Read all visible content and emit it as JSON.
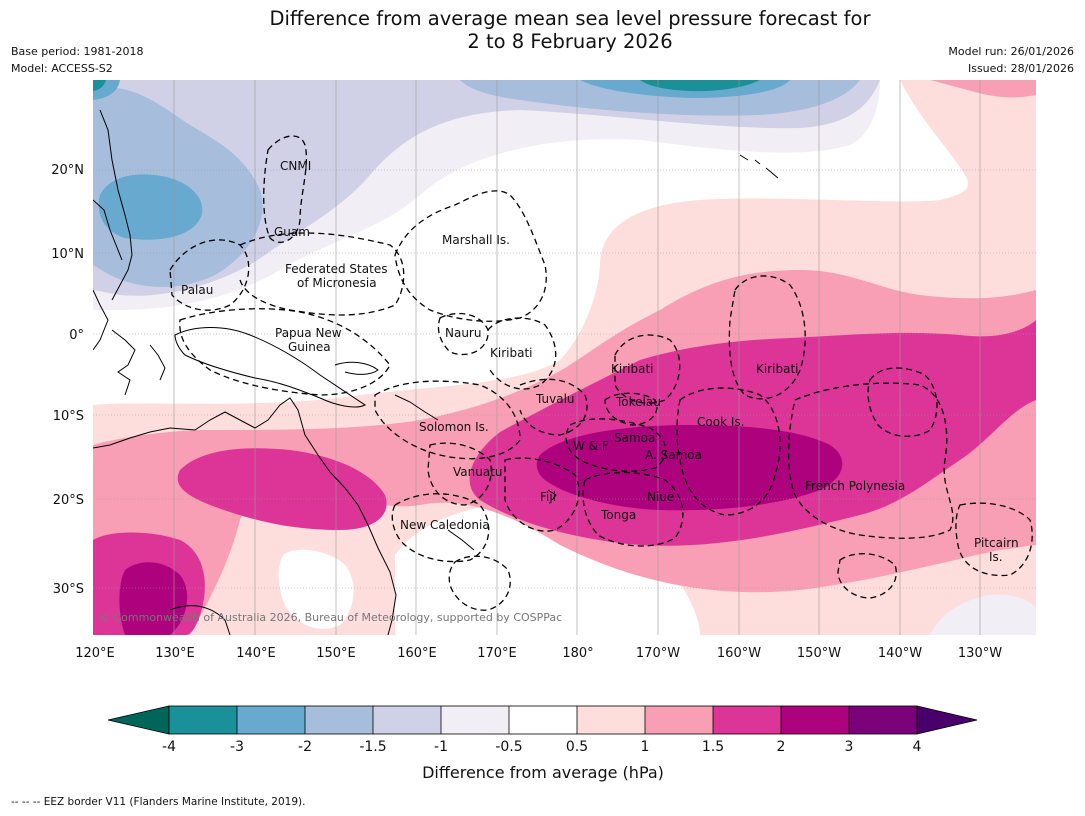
{
  "title": {
    "line1": "Difference from average mean sea level pressure forecast for",
    "line2": "2 to 8 February 2026"
  },
  "meta": {
    "base_period": "Base period: 1981-2018",
    "model": "Model: ACCESS-S2",
    "model_run": "Model run: 26/01/2026",
    "issued": "Issued: 28/01/2026"
  },
  "axes": {
    "lon_ticks": [
      "120°E",
      "130°E",
      "140°E",
      "150°E",
      "160°E",
      "170°E",
      "180°",
      "170°W",
      "160°W",
      "150°W",
      "140°W",
      "130°W"
    ],
    "lat_ticks": [
      "20°N",
      "10°N",
      "0°",
      "10°S",
      "20°S",
      "30°S"
    ]
  },
  "region_labels": {
    "cnmi": "CNMI",
    "guam": "Guam",
    "marshall": "Marshall Is.",
    "fsm_line1": "Federated States",
    "fsm_line2": "of Micronesia",
    "palau": "Palau",
    "png_line1": "Papua New",
    "png_line2": "Guinea",
    "nauru": "Nauru",
    "kiribati_w": "Kiribati",
    "kiribati_c": "Kiribati",
    "kiribati_e": "Kiribati",
    "tuvalu": "Tuvalu",
    "tokelau": "Tokelau",
    "cook": "Cook Is.",
    "solomon": "Solomon Is.",
    "samoa": "Samoa",
    "wf": "W & F",
    "asamoa": "A. Samoa",
    "vanuatu": "Vanuatu",
    "fiji": "Fiji",
    "niue": "Niue",
    "tonga": "Tonga",
    "frpoly": "French Polynesia",
    "newcal": "New Caledonia",
    "pitcairn_line1": "Pitcairn",
    "pitcairn_line2": "Is."
  },
  "credit": "© Commonwealth of Australia 2026, Bureau of Meteorology, supported by COSPPac",
  "colorbar": {
    "title": "Difference from average (hPa)",
    "ticks": [
      "-4",
      "-3",
      "-2",
      "-1.5",
      "-1",
      "-0.5",
      "0.5",
      "1",
      "1.5",
      "2",
      "3",
      "4"
    ],
    "colors": {
      "below_min": "#00665a",
      "lt_m4_m3": "#1a9099",
      "m3_m2": "#67a9cf",
      "m2_m15": "#a6bddb",
      "m15_m1": "#d0d1e6",
      "m1_m05": "#f2eef5",
      "neutral": "#ffffff",
      "p05_p1": "#fddedc",
      "p1_p15": "#f99fb5",
      "p15_p2": "#dd3497",
      "p2_p3": "#ae017e",
      "p3_p4": "#7a0177",
      "above_max": "#49006a"
    }
  },
  "footer": "--  --  -- EEZ border V11 (Flanders Marine Institute, 2019)."
}
